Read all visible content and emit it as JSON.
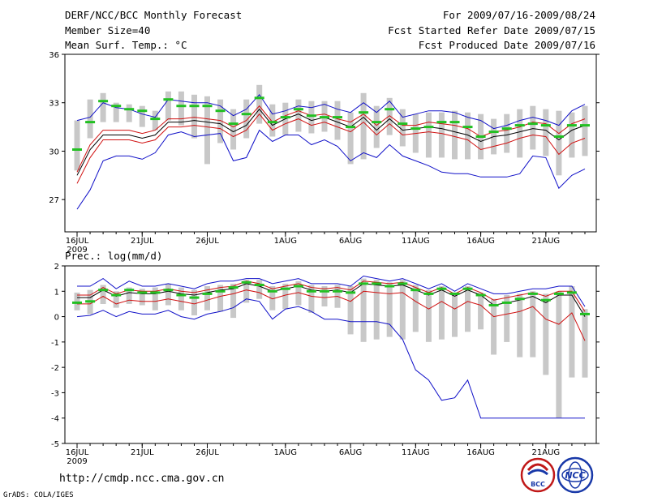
{
  "header": {
    "title": "DERF/NCC/BCC Monthly Forecast",
    "member_size": "Member Size=40",
    "variable": "Mean Surf. Temp.: °C",
    "period": "For 2009/07/16-2009/08/24",
    "refer_date": "Fcst Started Refer Date 2009/07/15",
    "produced_date": "Fcst Produced Date 2009/07/16"
  },
  "footer": {
    "url": "http://cmdp.ncc.cma.gov.cn",
    "credit": "GrADS: COLA/IGES",
    "logo_bcc": "BCC",
    "logo_ncc": "NCC"
  },
  "colors": {
    "box": "#c8c8c8",
    "median": "#22c022",
    "envelope": "#1010c8",
    "stdev": "#d01010",
    "mean": "#000000",
    "frame": "#000000"
  },
  "chart_data": [
    {
      "type": "line",
      "title": "Mean Surf. Temp.: °C",
      "xlabel": "",
      "ylabel": "°C",
      "ylim": [
        25,
        36
      ],
      "yticks": [
        27,
        30,
        33,
        36
      ],
      "ytick_labels": [
        "27",
        "30",
        "33",
        "36"
      ],
      "xlim": [
        0,
        39
      ],
      "xticks": [
        0,
        5,
        10,
        16,
        21,
        26,
        31,
        36
      ],
      "xtick_labels": [
        "16JUL",
        "21JUL",
        "26JUL",
        "1AUG",
        "6AUG",
        "11AUG",
        "16AUG",
        "21AUG"
      ],
      "xtick_sublabel": "2009",
      "days": [
        "07/16",
        "07/17",
        "07/18",
        "07/19",
        "07/20",
        "07/21",
        "07/22",
        "07/23",
        "07/24",
        "07/25",
        "07/26",
        "07/27",
        "07/28",
        "07/29",
        "07/30",
        "07/31",
        "08/01",
        "08/02",
        "08/03",
        "08/04",
        "08/05",
        "08/06",
        "08/07",
        "08/08",
        "08/09",
        "08/10",
        "08/11",
        "08/12",
        "08/13",
        "08/14",
        "08/15",
        "08/16",
        "08/17",
        "08/18",
        "08/19",
        "08/20",
        "08/21",
        "08/22",
        "08/23",
        "08/24"
      ],
      "series": [
        {
          "name": "ensemble max",
          "values": [
            31.9,
            32.1,
            33.0,
            32.7,
            32.6,
            32.3,
            32.1,
            33.2,
            33.1,
            33.0,
            33.0,
            32.8,
            32.2,
            32.6,
            33.5,
            32.3,
            32.5,
            32.8,
            32.7,
            32.9,
            32.6,
            32.4,
            33.0,
            32.4,
            33.1,
            32.1,
            32.3,
            32.5,
            32.5,
            32.4,
            32.1,
            31.9,
            31.4,
            31.6,
            31.9,
            32.1,
            31.9,
            31.6,
            32.5,
            32.9
          ]
        },
        {
          "name": "mean + stdev",
          "values": [
            28.7,
            30.4,
            31.3,
            31.3,
            31.3,
            31.1,
            31.3,
            32.0,
            32.0,
            32.1,
            32.0,
            31.9,
            31.5,
            31.9,
            32.8,
            31.8,
            32.2,
            32.5,
            32.2,
            32.3,
            32.0,
            31.8,
            32.3,
            31.6,
            32.2,
            31.6,
            31.6,
            31.8,
            31.7,
            31.6,
            31.4,
            30.9,
            31.2,
            31.3,
            31.5,
            31.8,
            31.7,
            31.1,
            31.7,
            32.0
          ]
        },
        {
          "name": "ensemble mean",
          "values": [
            28.5,
            30.1,
            31.0,
            31.0,
            31.0,
            30.8,
            31.0,
            31.8,
            31.8,
            31.9,
            31.8,
            31.7,
            31.2,
            31.6,
            32.6,
            31.6,
            32.0,
            32.3,
            31.9,
            32.1,
            31.8,
            31.5,
            32.1,
            31.3,
            32.0,
            31.3,
            31.4,
            31.5,
            31.4,
            31.2,
            31.0,
            30.6,
            30.9,
            31.0,
            31.2,
            31.4,
            31.3,
            30.7,
            31.3,
            31.6
          ]
        },
        {
          "name": "mean - stdev",
          "values": [
            28.0,
            29.6,
            30.7,
            30.7,
            30.7,
            30.5,
            30.7,
            31.5,
            31.5,
            31.6,
            31.5,
            31.4,
            30.9,
            31.3,
            32.3,
            31.3,
            31.7,
            32.0,
            31.6,
            31.8,
            31.5,
            31.2,
            31.8,
            31.0,
            31.7,
            31.0,
            31.1,
            31.2,
            31.1,
            30.9,
            30.7,
            30.1,
            30.3,
            30.5,
            30.8,
            31.0,
            30.9,
            29.8,
            30.5,
            30.8
          ]
        },
        {
          "name": "ensemble min",
          "values": [
            26.4,
            27.6,
            29.4,
            29.7,
            29.7,
            29.5,
            29.9,
            31.0,
            31.2,
            30.9,
            31.0,
            31.1,
            29.4,
            29.6,
            31.3,
            30.6,
            31.0,
            31.0,
            30.4,
            30.7,
            30.3,
            29.4,
            29.9,
            29.6,
            30.4,
            29.7,
            29.4,
            29.1,
            28.7,
            28.6,
            28.6,
            28.4,
            28.4,
            28.4,
            28.6,
            29.7,
            29.6,
            27.7,
            28.5,
            28.9
          ]
        }
      ],
      "medians": [
        30.1,
        31.8,
        33.1,
        32.8,
        32.6,
        32.5,
        32.0,
        33.2,
        32.8,
        32.8,
        32.8,
        32.5,
        31.7,
        32.3,
        33.3,
        31.8,
        32.1,
        32.6,
        32.2,
        32.1,
        32.1,
        31.5,
        32.4,
        31.8,
        32.6,
        31.7,
        31.4,
        31.5,
        31.8,
        31.8,
        31.5,
        30.9,
        31.2,
        31.4,
        31.6,
        31.7,
        31.6,
        30.9,
        31.6,
        31.6
      ],
      "boxes": [
        [
          28.8,
          31.9
        ],
        [
          30.8,
          33.2
        ],
        [
          31.8,
          33.6
        ],
        [
          31.8,
          33.0
        ],
        [
          31.8,
          32.9
        ],
        [
          31.5,
          32.8
        ],
        [
          31.3,
          32.5
        ],
        [
          31.9,
          33.7
        ],
        [
          31.6,
          33.7
        ],
        [
          30.8,
          33.5
        ],
        [
          29.2,
          33.4
        ],
        [
          30.5,
          33.2
        ],
        [
          30.1,
          32.6
        ],
        [
          30.8,
          33.2
        ],
        [
          31.7,
          34.1
        ],
        [
          30.9,
          32.9
        ],
        [
          31.0,
          33.0
        ],
        [
          31.2,
          33.2
        ],
        [
          31.1,
          33.1
        ],
        [
          31.2,
          33.1
        ],
        [
          30.7,
          33.1
        ],
        [
          29.2,
          32.4
        ],
        [
          29.5,
          33.6
        ],
        [
          30.2,
          32.8
        ],
        [
          31.0,
          33.3
        ],
        [
          30.3,
          32.6
        ],
        [
          29.9,
          32.3
        ],
        [
          29.6,
          32.4
        ],
        [
          29.6,
          32.4
        ],
        [
          29.5,
          32.5
        ],
        [
          29.5,
          32.4
        ],
        [
          29.5,
          32.3
        ],
        [
          29.8,
          32.0
        ],
        [
          29.9,
          32.3
        ],
        [
          29.6,
          32.6
        ],
        [
          30.1,
          32.8
        ],
        [
          29.7,
          32.6
        ],
        [
          28.5,
          32.5
        ],
        [
          29.6,
          32.4
        ],
        [
          29.7,
          32.8
        ]
      ]
    },
    {
      "type": "line",
      "title": "Prec.: log(mm/d)",
      "xlabel": "",
      "ylabel": "log(mm/d)",
      "ylim": [
        -5,
        2
      ],
      "yticks": [
        -5,
        -4,
        -3,
        -2,
        -1,
        0,
        1,
        2
      ],
      "ytick_labels": [
        "-5",
        "-4",
        "-3",
        "-2",
        "-1",
        "0",
        "1",
        "2"
      ],
      "xlim": [
        0,
        39
      ],
      "xticks": [
        0,
        5,
        10,
        16,
        21,
        26,
        31,
        36
      ],
      "xtick_labels": [
        "16JUL",
        "21JUL",
        "26JUL",
        "1AUG",
        "6AUG",
        "11AUG",
        "16AUG",
        "21AUG"
      ],
      "xtick_sublabel": "2009",
      "days": [
        "07/16",
        "07/17",
        "07/18",
        "07/19",
        "07/20",
        "07/21",
        "07/22",
        "07/23",
        "07/24",
        "07/25",
        "07/26",
        "07/27",
        "07/28",
        "07/29",
        "07/30",
        "07/31",
        "08/01",
        "08/02",
        "08/03",
        "08/04",
        "08/05",
        "08/06",
        "08/07",
        "08/08",
        "08/09",
        "08/10",
        "08/11",
        "08/12",
        "08/13",
        "08/14",
        "08/15",
        "08/16",
        "08/17",
        "08/18",
        "08/19",
        "08/20",
        "08/21",
        "08/22",
        "08/23",
        "08/24"
      ],
      "series": [
        {
          "name": "ensemble max",
          "values": [
            1.2,
            1.2,
            1.5,
            1.1,
            1.4,
            1.2,
            1.2,
            1.3,
            1.2,
            1.1,
            1.3,
            1.4,
            1.4,
            1.5,
            1.5,
            1.3,
            1.4,
            1.5,
            1.3,
            1.3,
            1.3,
            1.2,
            1.6,
            1.5,
            1.4,
            1.5,
            1.3,
            1.1,
            1.3,
            1.0,
            1.3,
            1.1,
            0.9,
            0.9,
            1.0,
            1.1,
            1.1,
            1.2,
            1.2,
            0.4
          ]
        },
        {
          "name": "mean + stdev",
          "values": [
            0.85,
            0.85,
            1.15,
            0.9,
            1.05,
            1.0,
            1.0,
            1.1,
            1.0,
            0.95,
            1.05,
            1.15,
            1.2,
            1.4,
            1.3,
            1.1,
            1.2,
            1.3,
            1.15,
            1.1,
            1.15,
            1.05,
            1.4,
            1.35,
            1.3,
            1.35,
            1.15,
            0.95,
            1.15,
            0.9,
            1.15,
            0.95,
            0.65,
            0.75,
            0.85,
            0.95,
            0.8,
            1.0,
            1.0,
            0.2
          ]
        },
        {
          "name": "ensemble mean",
          "values": [
            0.75,
            0.75,
            1.05,
            0.8,
            0.95,
            0.9,
            0.9,
            1.0,
            0.9,
            0.85,
            0.95,
            1.05,
            1.1,
            1.3,
            1.2,
            1.0,
            1.1,
            1.2,
            1.05,
            1.0,
            1.05,
            0.95,
            1.3,
            1.25,
            1.2,
            1.25,
            1.05,
            0.85,
            1.05,
            0.8,
            1.05,
            0.85,
            0.45,
            0.55,
            0.65,
            0.8,
            0.55,
            0.85,
            0.85,
            0.0
          ]
        },
        {
          "name": "mean - stdev",
          "values": [
            0.5,
            0.5,
            0.8,
            0.5,
            0.65,
            0.6,
            0.6,
            0.7,
            0.6,
            0.5,
            0.65,
            0.8,
            0.9,
            1.05,
            0.95,
            0.7,
            0.85,
            0.95,
            0.8,
            0.75,
            0.8,
            0.6,
            1.0,
            0.95,
            0.9,
            0.95,
            0.6,
            0.3,
            0.6,
            0.3,
            0.6,
            0.45,
            0.0,
            0.1,
            0.2,
            0.4,
            -0.1,
            -0.3,
            0.15,
            -0.95
          ]
        },
        {
          "name": "ensemble min",
          "values": [
            0.0,
            0.05,
            0.25,
            0.0,
            0.2,
            0.1,
            0.1,
            0.25,
            0.0,
            -0.1,
            0.1,
            0.2,
            0.35,
            0.7,
            0.6,
            -0.1,
            0.3,
            0.4,
            0.2,
            -0.1,
            -0.1,
            -0.2,
            -0.2,
            -0.2,
            -0.3,
            -0.9,
            -2.1,
            -2.5,
            -3.3,
            -3.2,
            -2.5,
            -4.0,
            -4.0,
            -4.0,
            -4.0,
            -4.0,
            -4.0,
            -4.0,
            -4.0,
            -4.0
          ]
        }
      ],
      "medians": [
        0.55,
        0.6,
        1.05,
        0.85,
        1.05,
        0.95,
        0.95,
        1.05,
        0.85,
        0.75,
        0.9,
        1.0,
        1.15,
        1.35,
        1.25,
        1.0,
        1.1,
        1.2,
        1.0,
        1.0,
        1.0,
        0.95,
        1.3,
        1.3,
        1.2,
        1.3,
        1.05,
        0.9,
        1.1,
        0.9,
        1.1,
        0.85,
        0.45,
        0.55,
        0.7,
        0.9,
        0.65,
        0.9,
        0.95,
        0.1
      ],
      "boxes": [
        [
          0.25,
          0.95
        ],
        [
          0.1,
          1.05
        ],
        [
          0.5,
          1.25
        ],
        [
          0.35,
          1.0
        ],
        [
          0.5,
          1.15
        ],
        [
          0.45,
          1.1
        ],
        [
          0.25,
          1.15
        ],
        [
          0.45,
          1.3
        ],
        [
          0.25,
          1.15
        ],
        [
          0.05,
          1.05
        ],
        [
          0.25,
          1.2
        ],
        [
          0.2,
          1.25
        ],
        [
          -0.05,
          1.3
        ],
        [
          0.55,
          1.45
        ],
        [
          0.7,
          1.45
        ],
        [
          0.25,
          1.2
        ],
        [
          0.3,
          1.3
        ],
        [
          0.45,
          1.4
        ],
        [
          0.15,
          1.25
        ],
        [
          0.4,
          1.2
        ],
        [
          0.35,
          1.25
        ],
        [
          -0.7,
          1.2
        ],
        [
          -1.0,
          1.5
        ],
        [
          -0.9,
          1.45
        ],
        [
          -0.8,
          1.35
        ],
        [
          -0.9,
          1.45
        ],
        [
          -0.6,
          1.25
        ],
        [
          -1.0,
          1.05
        ],
        [
          -0.9,
          1.2
        ],
        [
          -0.8,
          0.9
        ],
        [
          -0.6,
          1.2
        ],
        [
          -0.5,
          0.95
        ],
        [
          -1.5,
          0.7
        ],
        [
          -1.0,
          0.85
        ],
        [
          -1.6,
          0.9
        ],
        [
          -1.6,
          1.0
        ],
        [
          -2.3,
          0.9
        ],
        [
          -4.0,
          1.0
        ],
        [
          -2.4,
          1.2
        ],
        [
          -2.4,
          0.3
        ]
      ]
    }
  ]
}
